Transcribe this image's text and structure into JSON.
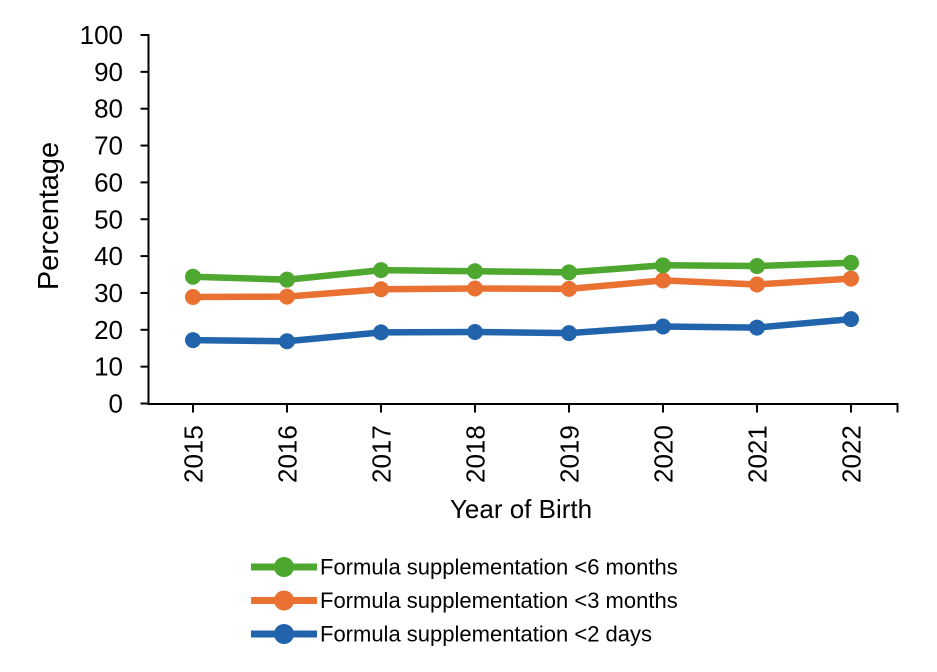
{
  "chart_data": {
    "type": "line",
    "title": "",
    "xlabel": "Year of Birth",
    "ylabel": "Percentage",
    "x": [
      "2015",
      "2016",
      "2017",
      "2018",
      "2019",
      "2020",
      "2021",
      "2022"
    ],
    "ylim": [
      0,
      100
    ],
    "yticks": [
      0,
      10,
      20,
      30,
      40,
      50,
      60,
      70,
      80,
      90,
      100
    ],
    "grid": false,
    "legend_position": "bottom",
    "background_color": "#FFFFFF",
    "axis_color": "#000000",
    "series": [
      {
        "label": "Formula supplementation <6 months",
        "color": "#4EA72E",
        "values": [
          34.4,
          33.6,
          36.2,
          35.9,
          35.6,
          37.5,
          37.3,
          38.2
        ]
      },
      {
        "label": "Formula supplementation <3 months",
        "color": "#E97132",
        "values": [
          28.9,
          29.0,
          31.0,
          31.2,
          31.1,
          33.4,
          32.3,
          33.9
        ]
      },
      {
        "label": "Formula supplementation <2 days",
        "color": "#2164AC",
        "values": [
          17.2,
          16.9,
          19.3,
          19.4,
          19.1,
          20.9,
          20.6,
          22.9
        ]
      }
    ]
  }
}
